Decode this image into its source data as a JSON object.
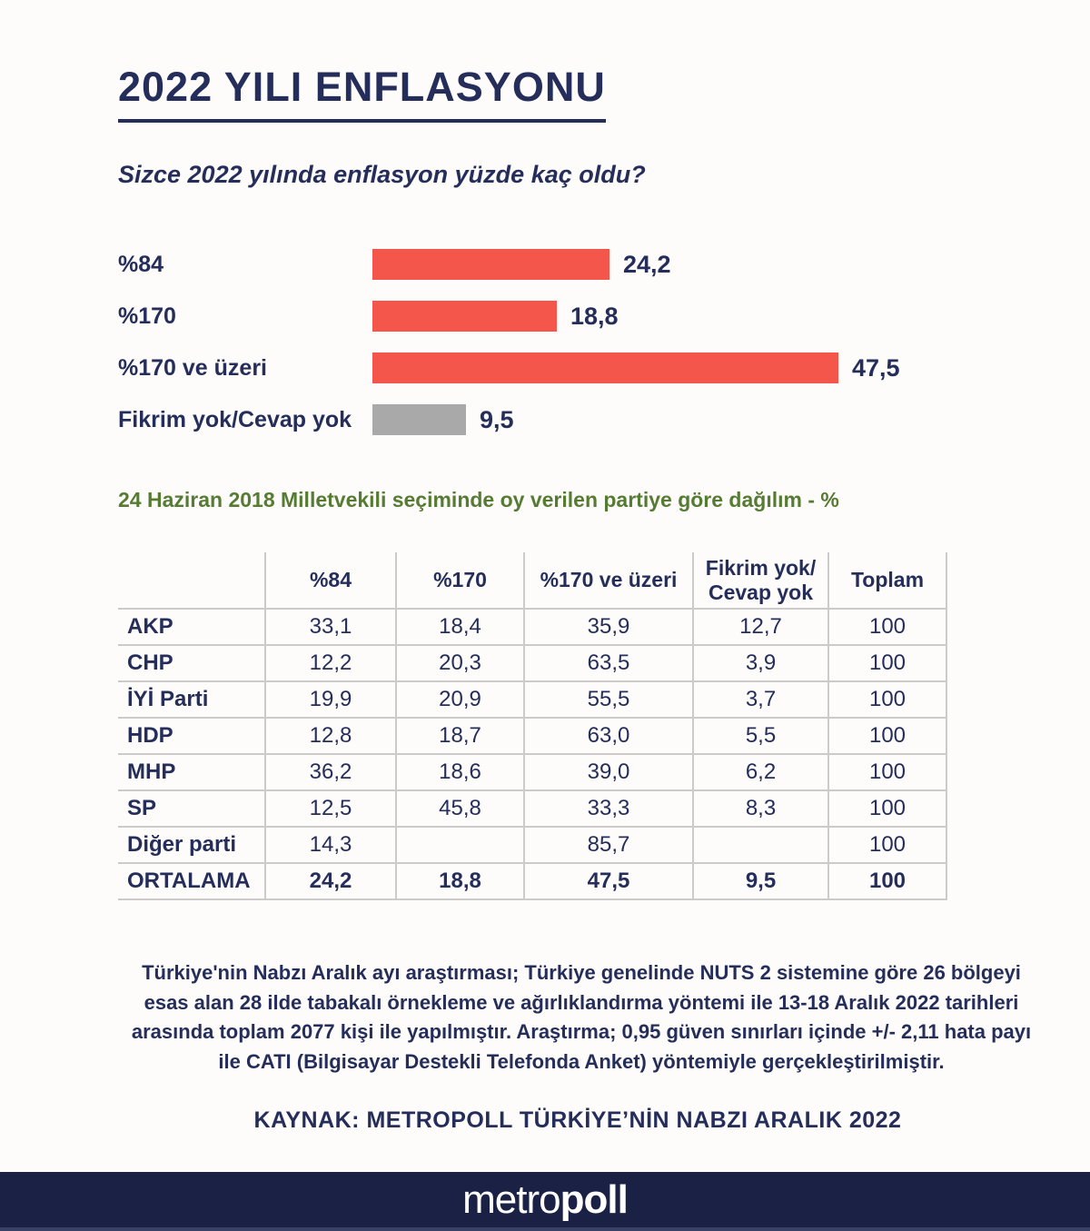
{
  "colors": {
    "navy_text": "#252e5b",
    "footer_navy": "#1a2145",
    "bar_red": "#f4564b",
    "bar_gray": "#a9a9a9",
    "heading_green": "#567b33",
    "grid_line": "#cbcbcb",
    "background": "#fdfcfa"
  },
  "chart_data": [
    {
      "type": "bar",
      "orientation": "horizontal",
      "title": "2022 YILI ENFLASYONU",
      "subtitle": "Sizce 2022 yılında enflasyon yüzde kaç oldu?",
      "categories": [
        "%84",
        "%170",
        "%170 ve üzeri",
        "Fikrim yok/Cevap yok"
      ],
      "values": [
        24.2,
        18.8,
        47.5,
        9.5
      ],
      "value_labels": [
        "24,2",
        "18,8",
        "47,5",
        "9,5"
      ],
      "bar_colors": [
        "#f4564b",
        "#f4564b",
        "#f4564b",
        "#a9a9a9"
      ],
      "xlim": [
        0,
        50
      ],
      "grid": false,
      "legend": false,
      "unit": "%"
    },
    {
      "type": "table",
      "title": "24 Haziran 2018 Milletvekili seçiminde oy verilen partiye göre dağılım - %",
      "columns": [
        "",
        "%84",
        "%170",
        "%170 ve üzeri",
        "Fikrim yok/ Cevap yok",
        "Toplam"
      ],
      "rows": [
        [
          "AKP",
          "33,1",
          "18,4",
          "35,9",
          "12,7",
          "100"
        ],
        [
          "CHP",
          "12,2",
          "20,3",
          "63,5",
          "3,9",
          "100"
        ],
        [
          "İYİ Parti",
          "19,9",
          "20,9",
          "55,5",
          "3,7",
          "100"
        ],
        [
          "HDP",
          "12,8",
          "18,7",
          "63,0",
          "5,5",
          "100"
        ],
        [
          "MHP",
          "36,2",
          "18,6",
          "39,0",
          "6,2",
          "100"
        ],
        [
          "SP",
          "12,5",
          "45,8",
          "33,3",
          "8,3",
          "100"
        ],
        [
          "Diğer parti",
          "14,3",
          "",
          "85,7",
          "",
          "100"
        ],
        [
          "ORTALAMA",
          "24,2",
          "18,8",
          "47,5",
          "9,5",
          "100"
        ]
      ],
      "bold_last_row": true
    }
  ],
  "footer": {
    "methodology": "Türkiye'nin Nabzı Aralık ayı araştırması; Türkiye genelinde NUTS 2 sistemine göre 26 bölgeyi esas alan 28 ilde tabakalı örnekleme ve ağırlıklandırma yöntemi ile 13-18 Aralık 2022 tarihleri arasında toplam 2077 kişi ile yapılmıştır. Araştırma; 0,95 güven sınırları içinde +/- 2,11 hata payı ile CATI (Bilgisayar Destekli Telefonda Anket) yöntemiyle gerçekleştirilmiştir.",
    "source": "KAYNAK: METROPOLL TÜRKİYE’NİN NABZI ARALIK 2022",
    "brand_light": "metro",
    "brand_bold": "poll"
  }
}
